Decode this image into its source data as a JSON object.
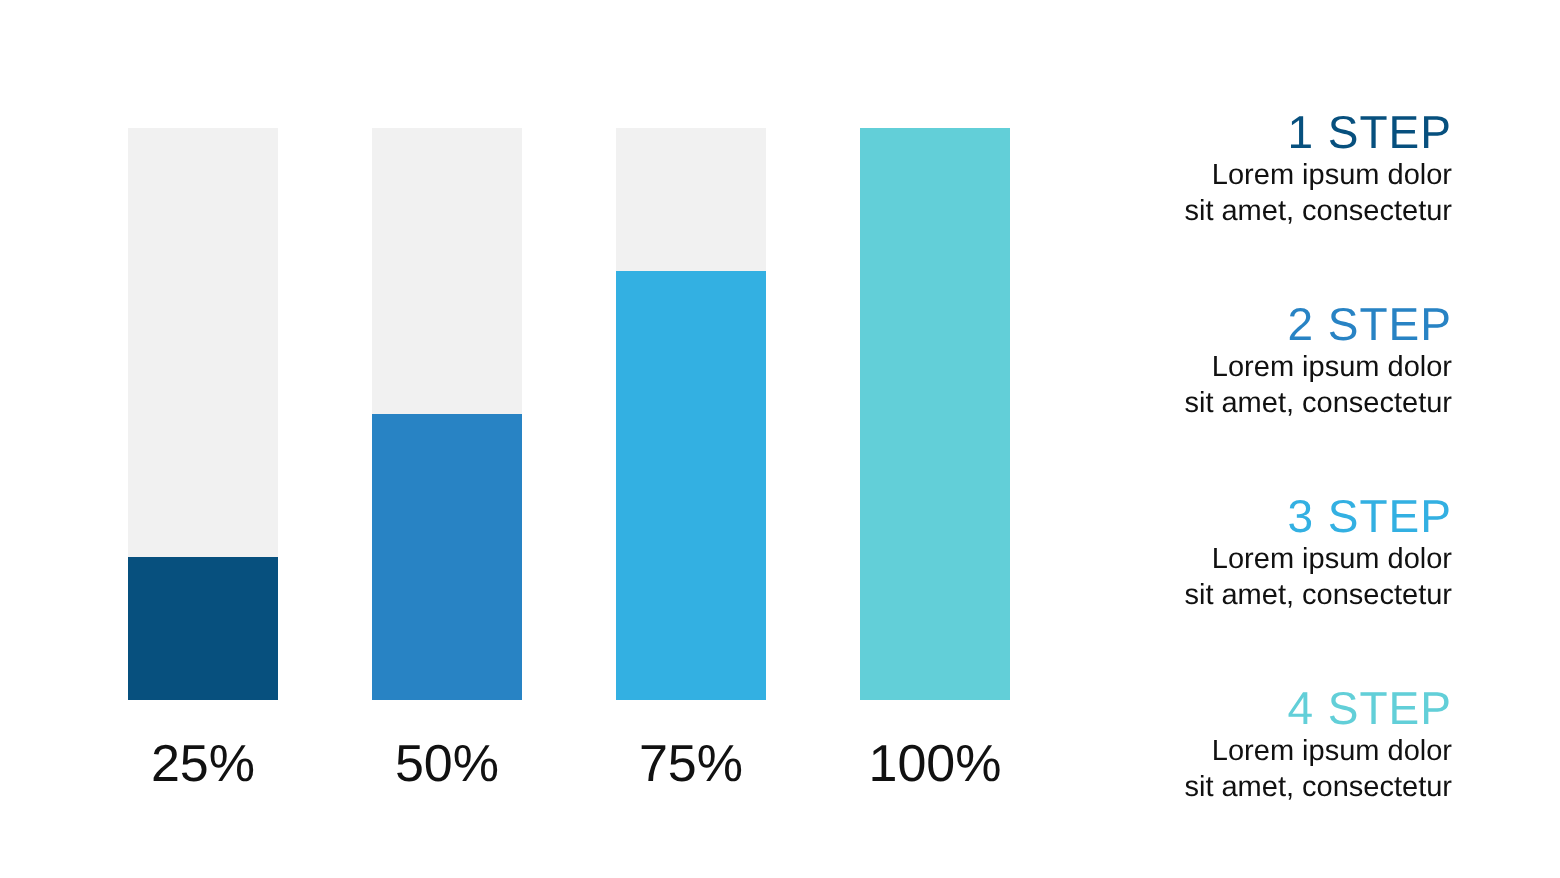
{
  "chart_data": {
    "type": "bar",
    "categories": [
      null,
      null,
      null,
      null
    ],
    "series": [
      {
        "colors": [
          "#07507e",
          "#2883c4",
          "#33b0e2",
          "#62cfd8"
        ],
        "values": [
          25,
          50,
          75,
          100
        ],
        "value_labels": [
          "25%",
          "50%",
          "75%",
          "100%"
        ]
      },
      {
        "color": "#f1f1f1",
        "values": [
          75,
          50,
          25,
          0
        ]
      }
    ],
    "stacked": true,
    "ylim": [
      0,
      100
    ],
    "tick_labels": false,
    "annotations": [
      "1 STEP",
      "Lorem ipsum dolor\nsit amet, consectetur",
      "2 STEP",
      "Lorem ipsum dolor\nsit amet, consectetur",
      "3 STEP",
      "Lorem ipsum dolor\nsit amet, consectetur",
      "4 STEP",
      "Lorem ipsum dolor\nsit amet, consectetur"
    ]
  }
}
